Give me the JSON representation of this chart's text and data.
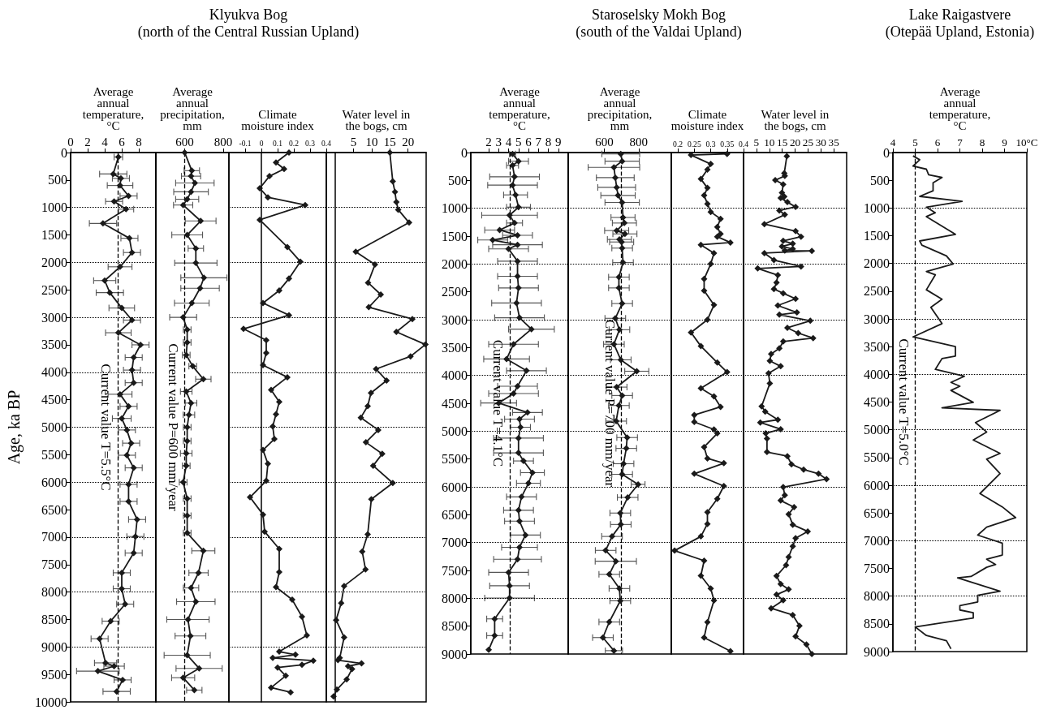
{
  "chart_data": [
    {
      "type": "line",
      "xlabel": "Average annual temperature, °C",
      "ylabel": "Age, ka BP",
      "color": "#1a1a1a",
      "marker": "diamond",
      "line_style": "solid",
      "x": [
        5.6,
        5.0,
        5.9,
        5.8,
        6.8,
        5.1,
        6.5,
        3.8,
        6.9,
        7.2,
        5.8,
        4.0,
        4.6,
        6.0,
        7.2,
        5.6,
        8.2,
        7.4,
        7.2,
        7.4,
        5.8,
        6.8,
        6.0,
        6.6,
        7.1,
        6.6,
        7.4,
        6.8,
        6.8,
        7.8,
        7.6,
        7.4,
        6.0,
        6.0,
        6.4,
        4.7,
        3.4,
        4.1,
        5.1,
        3.2,
        6.1,
        5.4
      ],
      "values": [
        80,
        390,
        470,
        600,
        790,
        890,
        1030,
        1290,
        1560,
        1820,
        2080,
        2330,
        2550,
        2830,
        3050,
        3280,
        3500,
        3730,
        3960,
        4190,
        4400,
        4620,
        4840,
        5050,
        5290,
        5510,
        5740,
        6040,
        6350,
        6680,
        6990,
        7290,
        7650,
        7940,
        8220,
        8530,
        8850,
        9290,
        9350,
        9440,
        9600,
        9810
      ],
      "xerrors": [
        0.5,
        1.6,
        1.0,
        1.5,
        1.0,
        1.0,
        0.9,
        1.6,
        1.0,
        1.0,
        1.4,
        1.3,
        1.6,
        1.5,
        1.0,
        1.5,
        1.0,
        1.0,
        1.0,
        1.0,
        1.4,
        1.0,
        1.1,
        1.0,
        1.0,
        1.0,
        1.0,
        1.0,
        1.0,
        1.0,
        1.0,
        1.0,
        1.0,
        1.0,
        1.0,
        1.0,
        1.0,
        1.3,
        1.2,
        2.5,
        1.0,
        1.6
      ],
      "xlim": [
        0,
        10
      ],
      "xticks": [
        0,
        2,
        4,
        6,
        8
      ],
      "ylim": [
        10000,
        0
      ],
      "yticks": [
        0,
        500,
        1000,
        1500,
        2000,
        2500,
        3000,
        3500,
        4000,
        4500,
        5000,
        5500,
        6000,
        6500,
        7000,
        7500,
        8000,
        8500,
        9000,
        9500,
        10000
      ],
      "ref_lines": [
        {
          "axis": "x",
          "value": 5.5,
          "label": "Current value T=5.5°C",
          "line_style": "dashed",
          "color": "#000000"
        },
        {
          "axis": "y",
          "value": 1000,
          "label": null,
          "line_style": "dotted",
          "color": "#000000"
        },
        {
          "axis": "y",
          "value": 2000,
          "label": null,
          "line_style": "dotted",
          "color": "#000000"
        },
        {
          "axis": "y",
          "value": 3000,
          "label": null,
          "line_style": "dotted",
          "color": "#000000"
        },
        {
          "axis": "y",
          "value": 4000,
          "label": null,
          "line_style": "dotted",
          "color": "#000000"
        },
        {
          "axis": "y",
          "value": 5000,
          "label": null,
          "line_style": "dotted",
          "color": "#000000"
        },
        {
          "axis": "y",
          "value": 6000,
          "label": null,
          "line_style": "dotted",
          "color": "#000000"
        },
        {
          "axis": "y",
          "value": 7000,
          "label": null,
          "line_style": "dotted",
          "color": "#000000"
        },
        {
          "axis": "y",
          "value": 8000,
          "label": null,
          "line_style": "dotted",
          "color": "#000000"
        },
        {
          "axis": "y",
          "value": 9000,
          "label": null,
          "line_style": "dotted",
          "color": "#000000"
        }
      ]
    },
    {
      "type": "line",
      "xlabel": "Average annual precipitation, mm",
      "color": "#1a1a1a",
      "marker": "diamond",
      "line_style": "solid",
      "tick_labels": "x",
      "x": [
        600,
        637,
        633,
        653,
        633,
        613,
        592,
        683,
        613,
        658,
        658,
        700,
        680,
        637,
        592,
        613,
        613,
        608,
        642,
        697,
        608,
        633,
        622,
        613,
        613,
        608,
        608,
        592,
        613,
        613,
        613,
        697,
        672,
        633,
        658,
        617,
        630,
        613,
        675,
        592,
        650
      ],
      "values": [
        0,
        330,
        430,
        555,
        715,
        850,
        955,
        1245,
        1500,
        1745,
        2010,
        2280,
        2470,
        2740,
        3000,
        3225,
        3455,
        3685,
        3890,
        4125,
        4350,
        4560,
        4775,
        5000,
        5250,
        5475,
        5700,
        6000,
        6300,
        6610,
        6925,
        7250,
        7650,
        7925,
        8175,
        8500,
        8800,
        9150,
        9390,
        9560,
        9785
      ],
      "xerrors": [
        null,
        40,
        50,
        100,
        90,
        60,
        50,
        80,
        80,
        40,
        110,
        120,
        100,
        90,
        70,
        20,
        20,
        20,
        20,
        40,
        30,
        30,
        30,
        20,
        20,
        30,
        20,
        20,
        20,
        20,
        20,
        60,
        50,
        40,
        100,
        110,
        80,
        120,
        120,
        60,
        40
      ],
      "xlim": [
        450,
        830
      ],
      "xticks": [
        600,
        800
      ],
      "ylim": [
        10000,
        0
      ],
      "ref_lines": [
        {
          "axis": "x",
          "value": 600,
          "label": "Current value P=600 mm/year",
          "line_style": "dashed",
          "color": "#000000"
        }
      ]
    },
    {
      "type": "line",
      "title": "Klyukva Bog",
      "subtitle": "(north of the Central Russian Upland)",
      "xlabel": "Climate moisture index",
      "color": "#1a1a1a",
      "marker": "diamond",
      "line_style": "solid",
      "tick_labels": "x",
      "x": [
        0.17,
        0.09,
        0.14,
        0.05,
        -0.01,
        0.04,
        0.27,
        -0.01,
        0.16,
        0.24,
        0.17,
        0.11,
        0.01,
        0.17,
        -0.11,
        0.03,
        0.03,
        0.01,
        0.16,
        0.06,
        0.11,
        0.09,
        0.07,
        0.08,
        0.01,
        0.04,
        0.03,
        -0.07,
        0.01,
        0.02,
        0.11,
        0.11,
        0.09,
        0.19,
        0.25,
        0.28,
        0.11,
        0.21,
        0.07,
        0.32,
        0.25,
        0.1,
        0.15,
        0.06,
        0.18
      ],
      "values": [
        0,
        180,
        300,
        430,
        650,
        815,
        955,
        1225,
        1720,
        1985,
        2295,
        2510,
        2740,
        2960,
        3210,
        3415,
        3650,
        3870,
        4090,
        4320,
        4540,
        4765,
        4985,
        5215,
        5415,
        5665,
        5975,
        6275,
        6590,
        6900,
        7215,
        7635,
        7910,
        8140,
        8450,
        8790,
        9085,
        9140,
        9200,
        9250,
        9325,
        9375,
        9525,
        9740,
        9825
      ],
      "xlim": [
        -0.2,
        0.4
      ],
      "xticks": [
        -0.1,
        0,
        0.1,
        0.2,
        0.3,
        0.4
      ],
      "ylim": [
        10000,
        0
      ],
      "ref_lines": [
        {
          "axis": "y",
          "value": 1000,
          "label": null,
          "line_style": "dotted",
          "color": "#000000"
        },
        {
          "axis": "y",
          "value": 2000,
          "label": null,
          "line_style": "dotted",
          "color": "#000000"
        },
        {
          "axis": "y",
          "value": 3000,
          "label": null,
          "line_style": "dotted",
          "color": "#000000"
        },
        {
          "axis": "y",
          "value": 4000,
          "label": null,
          "line_style": "dotted",
          "color": "#000000"
        },
        {
          "axis": "y",
          "value": 5000,
          "label": null,
          "line_style": "dotted",
          "color": "#000000"
        },
        {
          "axis": "y",
          "value": 6000,
          "label": null,
          "line_style": "dotted",
          "color": "#000000"
        },
        {
          "axis": "y",
          "value": 7000,
          "label": null,
          "line_style": "dotted",
          "color": "#000000"
        },
        {
          "axis": "y",
          "value": 8000,
          "label": null,
          "line_style": "dotted",
          "color": "#000000"
        },
        {
          "axis": "y",
          "value": 9000,
          "label": null,
          "line_style": "dotted",
          "color": "#000000"
        }
      ]
    },
    {
      "type": "line",
      "xlabel": "Water level in the bogs, cm",
      "color": "#1a1a1a",
      "marker": "diamond",
      "line_style": "solid",
      "tick_labels": "x",
      "x": [
        15.0,
        15.8,
        16.4,
        16.8,
        17.3,
        20.3,
        5.6,
        10.9,
        9.0,
        12.5,
        9.2,
        21.2,
        16.8,
        24.8,
        20.7,
        11.2,
        14.1,
        9.8,
        8.9,
        7.0,
        11.8,
        8.4,
        12.9,
        10.4,
        15.8,
        9.9,
        8.9,
        7.4,
        8.3,
        2.4,
        1.6,
        0.2,
        2.4,
        1.2,
        0.7,
        7.2,
        3.5,
        4.6,
        3.1,
        0.4,
        -0.5
      ],
      "values": [
        0,
        525,
        715,
        900,
        1040,
        1275,
        1805,
        2040,
        2370,
        2585,
        2815,
        3030,
        3265,
        3495,
        3710,
        3940,
        4150,
        4375,
        4615,
        4825,
        5050,
        5275,
        5485,
        5700,
        6015,
        6310,
        6950,
        7265,
        7590,
        7890,
        8200,
        8510,
        8825,
        9200,
        9240,
        9300,
        9350,
        9400,
        9590,
        9775,
        9900
      ],
      "xlim": [
        -2.5,
        25
      ],
      "xticks": [
        5,
        10,
        15,
        20
      ],
      "ylim": [
        10000,
        0
      ],
      "ref_lines": [
        {
          "axis": "y",
          "value": 1000,
          "label": null,
          "line_style": "dotted",
          "color": "#000000"
        },
        {
          "axis": "y",
          "value": 2000,
          "label": null,
          "line_style": "dotted",
          "color": "#000000"
        },
        {
          "axis": "y",
          "value": 3000,
          "label": null,
          "line_style": "dotted",
          "color": "#000000"
        },
        {
          "axis": "y",
          "value": 4000,
          "label": null,
          "line_style": "dotted",
          "color": "#000000"
        },
        {
          "axis": "y",
          "value": 5000,
          "label": null,
          "line_style": "dotted",
          "color": "#000000"
        },
        {
          "axis": "y",
          "value": 6000,
          "label": null,
          "line_style": "dotted",
          "color": "#000000"
        },
        {
          "axis": "y",
          "value": 7000,
          "label": null,
          "line_style": "dotted",
          "color": "#000000"
        },
        {
          "axis": "y",
          "value": 8000,
          "label": null,
          "line_style": "dotted",
          "color": "#000000"
        },
        {
          "axis": "y",
          "value": 9000,
          "label": null,
          "line_style": "dotted",
          "color": "#000000"
        }
      ]
    },
    {
      "type": "line",
      "xlabel": "Average annual temperature, °C",
      "color": "#1a1a1a",
      "marker": "diamond",
      "line_style": "solid",
      "x": [
        4.4,
        5.0,
        4.4,
        4.6,
        4.4,
        4.7,
        5.0,
        4.1,
        4.6,
        3.1,
        4.9,
        2.4,
        4.9,
        4.0,
        4.9,
        4.9,
        5.0,
        4.8,
        5.1,
        6.3,
        4.5,
        3.8,
        5.8,
        4.9,
        4.5,
        3.0,
        5.9,
        5.1,
        5.2,
        5.0,
        5.0,
        5.5,
        6.4,
        6.0,
        5.3,
        5.0,
        5.1,
        5.7,
        5.1,
        4.9,
        4.0,
        4.1,
        4.1,
        2.6,
        2.6,
        2.0
      ],
      "values": [
        25,
        155,
        230,
        435,
        585,
        760,
        980,
        1125,
        1265,
        1390,
        1485,
        1570,
        1655,
        1730,
        1950,
        2220,
        2430,
        2700,
        2965,
        3170,
        3440,
        3705,
        3915,
        4195,
        4325,
        4495,
        4665,
        4785,
        4930,
        5125,
        5390,
        5535,
        5745,
        5935,
        6180,
        6420,
        6615,
        6865,
        7085,
        7300,
        7535,
        7775,
        7995,
        8370,
        8670,
        8925
      ],
      "xerrors": [
        0.3,
        1.0,
        0.6,
        2.5,
        2.5,
        1.2,
        1.2,
        2.8,
        0.8,
        1.5,
        1.5,
        1.5,
        2.5,
        2.0,
        2.0,
        2.0,
        2.0,
        2.5,
        2.5,
        2.3,
        2.5,
        2.3,
        2.0,
        2.0,
        2.5,
        1.8,
        1.5,
        1.5,
        1.0,
        2.5,
        2.5,
        1.0,
        1.2,
        1.2,
        1.5,
        1.5,
        1.5,
        1.5,
        1.8,
        2.4,
        2.0,
        2.0,
        2.5,
        0.8,
        0.8,
        null
      ],
      "xlim": [
        0.2,
        10
      ],
      "xticks": [
        2,
        3,
        4,
        5,
        6,
        7,
        8,
        9
      ],
      "ylim": [
        9000,
        0
      ],
      "yticks": [
        0,
        500,
        1000,
        1500,
        2000,
        2500,
        3000,
        3500,
        4000,
        4500,
        5000,
        5500,
        6000,
        6500,
        7000,
        7500,
        8000,
        8500,
        9000
      ],
      "ref_lines": [
        {
          "axis": "x",
          "value": 4.1,
          "label": "Current value T=4.1°C",
          "line_style": "dashed",
          "color": "#000000"
        },
        {
          "axis": "y",
          "value": 1000,
          "label": null,
          "line_style": "dotted",
          "color": "#000000"
        },
        {
          "axis": "y",
          "value": 2000,
          "label": null,
          "line_style": "dotted",
          "color": "#000000"
        },
        {
          "axis": "y",
          "value": 3000,
          "label": null,
          "line_style": "dotted",
          "color": "#000000"
        },
        {
          "axis": "y",
          "value": 4000,
          "label": null,
          "line_style": "dotted",
          "color": "#000000"
        },
        {
          "axis": "y",
          "value": 5000,
          "label": null,
          "line_style": "dotted",
          "color": "#000000"
        },
        {
          "axis": "y",
          "value": 6000,
          "label": null,
          "line_style": "dotted",
          "color": "#000000"
        },
        {
          "axis": "y",
          "value": 7000,
          "label": null,
          "line_style": "dotted",
          "color": "#000000"
        },
        {
          "axis": "y",
          "value": 8000,
          "label": null,
          "line_style": "dotted",
          "color": "#000000"
        }
      ]
    },
    {
      "type": "line",
      "title": "Staroselsky Mokh Bog",
      "subtitle": "(south of the Valdai Upland)",
      "xlabel": "Average annual precipitation, mm",
      "color": "#1a1a1a",
      "marker": "diamond",
      "line_style": "solid",
      "tick_labels": "x",
      "x": [
        696,
        704,
        656,
        664,
        672,
        680,
        704,
        709,
        717,
        672,
        720,
        688,
        701,
        704,
        709,
        685,
        685,
        704,
        664,
        688,
        656,
        696,
        789,
        672,
        704,
        685,
        669,
        733,
        728,
        712,
        704,
        797,
        736,
        693,
        696,
        645,
        608,
        667,
        629,
        688,
        693,
        629,
        592,
        656
      ],
      "values": [
        25,
        155,
        265,
        450,
        625,
        770,
        895,
        1165,
        1265,
        1400,
        1460,
        1560,
        1605,
        1715,
        1975,
        2235,
        2430,
        2710,
        2975,
        3180,
        3440,
        3720,
        3925,
        4210,
        4360,
        4540,
        4820,
        5115,
        5310,
        5585,
        5775,
        5955,
        6190,
        6470,
        6675,
        6890,
        7140,
        7335,
        7570,
        7825,
        8045,
        8425,
        8705,
        8940
      ],
      "xerrors": [
        110,
        100,
        150,
        110,
        110,
        100,
        100,
        70,
        70,
        70,
        70,
        70,
        70,
        60,
        60,
        60,
        60,
        60,
        60,
        60,
        60,
        60,
        70,
        60,
        60,
        60,
        60,
        60,
        60,
        60,
        60,
        40,
        60,
        60,
        60,
        60,
        60,
        120,
        60,
        60,
        60,
        60,
        60,
        50
      ],
      "xlim": [
        390,
        990
      ],
      "xticks": [
        600,
        800
      ],
      "ylim": [
        9000,
        0
      ],
      "ref_lines": [
        {
          "axis": "x",
          "value": 700,
          "label": "Current value P=700 mm/year",
          "line_style": "dashed",
          "color": "#000000"
        },
        {
          "axis": "y",
          "value": 1000,
          "label": null,
          "line_style": "dotted",
          "color": "#000000"
        },
        {
          "axis": "y",
          "value": 2000,
          "label": null,
          "line_style": "dotted",
          "color": "#000000"
        },
        {
          "axis": "y",
          "value": 3000,
          "label": null,
          "line_style": "dotted",
          "color": "#000000"
        },
        {
          "axis": "y",
          "value": 4000,
          "label": null,
          "line_style": "dotted",
          "color": "#000000"
        },
        {
          "axis": "y",
          "value": 5000,
          "label": null,
          "line_style": "dotted",
          "color": "#000000"
        },
        {
          "axis": "y",
          "value": 6000,
          "label": null,
          "line_style": "dotted",
          "color": "#000000"
        },
        {
          "axis": "y",
          "value": 7000,
          "label": null,
          "line_style": "dotted",
          "color": "#000000"
        },
        {
          "axis": "y",
          "value": 8000,
          "label": null,
          "line_style": "dotted",
          "color": "#000000"
        }
      ]
    },
    {
      "type": "line",
      "xlabel": "Climate moisture index",
      "color": "#1a1a1a",
      "marker": "diamond",
      "line_style": "solid",
      "tick_labels": "x",
      "x": [
        0.35,
        0.24,
        0.3,
        0.29,
        0.27,
        0.29,
        0.28,
        0.29,
        0.3,
        0.33,
        0.32,
        0.33,
        0.32,
        0.36,
        0.27,
        0.31,
        0.3,
        0.28,
        0.28,
        0.31,
        0.29,
        0.24,
        0.27,
        0.32,
        0.35,
        0.27,
        0.31,
        0.33,
        0.25,
        0.25,
        0.31,
        0.32,
        0.28,
        0.29,
        0.34,
        0.25,
        0.34,
        0.32,
        0.29,
        0.29,
        0.27,
        0.19,
        0.28,
        0.27,
        0.3,
        0.31,
        0.29,
        0.28,
        0.36
      ],
      "values": [
        25,
        45,
        205,
        305,
        475,
        635,
        770,
        920,
        1065,
        1190,
        1335,
        1460,
        1510,
        1615,
        1655,
        1805,
        2000,
        2270,
        2480,
        2735,
        3000,
        3230,
        3475,
        3770,
        3940,
        4230,
        4375,
        4565,
        4710,
        4835,
        4970,
        5040,
        5285,
        5490,
        5575,
        5765,
        5985,
        6215,
        6455,
        6665,
        6890,
        7145,
        7325,
        7595,
        7825,
        8040,
        8430,
        8705,
        8950
      ],
      "xlim": [
        0.18,
        0.4
      ],
      "xticks": [
        0.2,
        0.25,
        0.3,
        0.35,
        0.4
      ],
      "ylim": [
        9000,
        0
      ],
      "ref_lines": [
        {
          "axis": "y",
          "value": 1000,
          "label": null,
          "line_style": "dotted",
          "color": "#000000"
        },
        {
          "axis": "y",
          "value": 2000,
          "label": null,
          "line_style": "dotted",
          "color": "#000000"
        },
        {
          "axis": "y",
          "value": 3000,
          "label": null,
          "line_style": "dotted",
          "color": "#000000"
        },
        {
          "axis": "y",
          "value": 4000,
          "label": null,
          "line_style": "dotted",
          "color": "#000000"
        },
        {
          "axis": "y",
          "value": 5000,
          "label": null,
          "line_style": "dotted",
          "color": "#000000"
        },
        {
          "axis": "y",
          "value": 6000,
          "label": null,
          "line_style": "dotted",
          "color": "#000000"
        },
        {
          "axis": "y",
          "value": 7000,
          "label": null,
          "line_style": "dotted",
          "color": "#000000"
        },
        {
          "axis": "y",
          "value": 8000,
          "label": null,
          "line_style": "dotted",
          "color": "#000000"
        }
      ]
    },
    {
      "type": "line",
      "xlabel": "Water level in the bogs, cm",
      "color": "#1a1a1a",
      "marker": "diamond",
      "line_style": "solid",
      "tick_labels": "x",
      "x": [
        16.8,
        15.8,
        16,
        12.3,
        15.4,
        14.9,
        15.8,
        14.4,
        17,
        20.2,
        13.9,
        16,
        8.1,
        20.2,
        22.3,
        15.4,
        19.1,
        14.9,
        19.1,
        16,
        26.5,
        8.1,
        11.8,
        22.3,
        5.5,
        13.3,
        12.8,
        11.8,
        15.4,
        20.2,
        13.3,
        20.7,
        13.9,
        25.9,
        17,
        21.2,
        27,
        15.4,
        13.9,
        10.7,
        10.2,
        14.4,
        9.7,
        10.2,
        7.0,
        8.4,
        13.3,
        6.5,
        14.4,
        8.6,
        9.1,
        9.1,
        17,
        18.6,
        23.3,
        29.1,
        32.2,
        15.4,
        16,
        14.4,
        19.6,
        17.5,
        19.1,
        24.9,
        20.2,
        19.1,
        17.5,
        16.5,
        12.8,
        14.4,
        17.5,
        12.8,
        15.4,
        10.7,
        19.1,
        21.7,
        20.2,
        24.4,
        26.5
      ],
      "values": [
        65,
        370,
        420,
        495,
        570,
        720,
        790,
        815,
        890,
        975,
        1040,
        1115,
        1285,
        1410,
        1510,
        1585,
        1635,
        1685,
        1730,
        1760,
        1765,
        1805,
        1930,
        2045,
        2080,
        2200,
        2335,
        2450,
        2525,
        2625,
        2745,
        2870,
        2910,
        3020,
        3145,
        3240,
        3330,
        3390,
        3515,
        3615,
        3740,
        3835,
        3960,
        4145,
        4555,
        4650,
        4795,
        4845,
        4965,
        5040,
        5135,
        5375,
        5450,
        5595,
        5690,
        5765,
        5860,
        6005,
        6150,
        6245,
        6365,
        6490,
        6680,
        6800,
        6920,
        7065,
        7260,
        7405,
        7600,
        7745,
        7840,
        7935,
        8035,
        8180,
        8300,
        8495,
        8685,
        8830,
        9000
      ],
      "xlim": [
        0,
        40
      ],
      "xticks": [
        5,
        10,
        15,
        20,
        25,
        30,
        35
      ],
      "ylim": [
        9000,
        0
      ],
      "ref_lines": [
        {
          "axis": "y",
          "value": 1000,
          "label": null,
          "line_style": "dotted",
          "color": "#000000"
        },
        {
          "axis": "y",
          "value": 2000,
          "label": null,
          "line_style": "dotted",
          "color": "#000000"
        },
        {
          "axis": "y",
          "value": 3000,
          "label": null,
          "line_style": "dotted",
          "color": "#000000"
        },
        {
          "axis": "y",
          "value": 4000,
          "label": null,
          "line_style": "dotted",
          "color": "#000000"
        },
        {
          "axis": "y",
          "value": 5000,
          "label": null,
          "line_style": "dotted",
          "color": "#000000"
        },
        {
          "axis": "y",
          "value": 6000,
          "label": null,
          "line_style": "dotted",
          "color": "#000000"
        },
        {
          "axis": "y",
          "value": 7000,
          "label": null,
          "line_style": "dotted",
          "color": "#000000"
        },
        {
          "axis": "y",
          "value": 8000,
          "label": null,
          "line_style": "dotted",
          "color": "#000000"
        }
      ]
    },
    {
      "type": "line",
      "title": "Lake Raigastvere",
      "subtitle": "(Otepää Upland, Estonia)",
      "xlabel": "Average annual temperature, °C",
      "color": "#1a1a1a",
      "marker": "none",
      "line_style": "solid",
      "x": [
        4.9,
        5.2,
        4.9,
        5.5,
        5.6,
        6.2,
        5.8,
        5.8,
        5.2,
        7.1,
        5.5,
        5.9,
        5.5,
        6.8,
        5.2,
        5.3,
        6.4,
        6.7,
        5.5,
        5.9,
        5.5,
        6.2,
        5.7,
        6.2,
        4.9,
        6.8,
        6.8,
        6.2,
        5.9,
        7.2,
        6.6,
        7.0,
        6.6,
        7.6,
        6.2,
        8.8,
        7.7,
        8.2,
        7.6,
        8.8,
        8.2,
        8.8,
        7.9,
        8.9,
        9.5,
        8.2,
        7.8,
        8.9,
        8.9,
        8.2,
        8.6,
        8.2,
        7.5,
        6.9,
        8.8,
        7.8,
        7.8,
        7.0,
        7.0,
        7.6,
        7.6,
        5.0,
        5.5,
        6.4,
        6.6
      ],
      "values": [
        60,
        130,
        245,
        300,
        400,
        450,
        545,
        690,
        790,
        880,
        985,
        1085,
        1155,
        1475,
        1595,
        1670,
        1865,
        2010,
        2145,
        2205,
        2475,
        2645,
        2790,
        3085,
        3325,
        3500,
        3670,
        3715,
        3910,
        4035,
        4145,
        4215,
        4290,
        4505,
        4605,
        4650,
        4870,
        5040,
        5185,
        5425,
        5530,
        5790,
        6150,
        6390,
        6585,
        6755,
        6900,
        7045,
        7260,
        7335,
        7430,
        7480,
        7645,
        7670,
        7910,
        7985,
        8105,
        8170,
        8250,
        8300,
        8395,
        8555,
        8710,
        8805,
        8950
      ],
      "xlim": [
        4,
        10
      ],
      "xticks": [
        4,
        5,
        6,
        7,
        8,
        9,
        {
          "value": 10,
          "label": "10°C"
        }
      ],
      "ylim": [
        9000,
        0
      ],
      "yticks": [
        0,
        500,
        1000,
        1500,
        2000,
        2500,
        3000,
        3500,
        4000,
        4500,
        5000,
        5500,
        6000,
        6500,
        7000,
        7500,
        8000,
        8500,
        9000
      ],
      "ref_lines": [
        {
          "axis": "x",
          "value": 5.0,
          "label": "Current value T=5.0°C",
          "line_style": "dashed",
          "color": "#000000"
        },
        {
          "axis": "y",
          "value": 1000,
          "label": null,
          "line_style": "dotted",
          "color": "#000000"
        },
        {
          "axis": "y",
          "value": 2000,
          "label": null,
          "line_style": "dotted",
          "color": "#000000"
        },
        {
          "axis": "y",
          "value": 3000,
          "label": null,
          "line_style": "dotted",
          "color": "#000000"
        },
        {
          "axis": "y",
          "value": 4000,
          "label": null,
          "line_style": "dotted",
          "color": "#000000"
        },
        {
          "axis": "y",
          "value": 5000,
          "label": null,
          "line_style": "dotted",
          "color": "#000000"
        },
        {
          "axis": "y",
          "value": 6000,
          "label": null,
          "line_style": "dotted",
          "color": "#000000"
        },
        {
          "axis": "y",
          "value": 7000,
          "label": null,
          "line_style": "dotted",
          "color": "#000000"
        },
        {
          "axis": "y",
          "value": 8000,
          "label": null,
          "line_style": "dotted",
          "color": "#000000"
        }
      ]
    }
  ]
}
